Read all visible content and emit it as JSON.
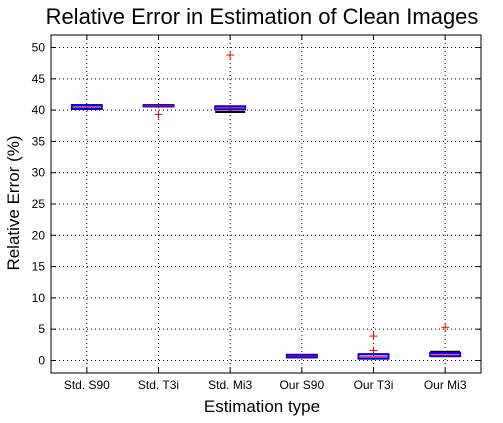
{
  "chart_data": {
    "type": "box",
    "title": "Relative Error in Estimation of Clean Images",
    "xlabel": "Estimation type",
    "ylabel": "Relative Error (%)",
    "ylim": [
      -2,
      52
    ],
    "yticks": [
      0,
      5,
      10,
      15,
      20,
      25,
      30,
      35,
      40,
      45,
      50
    ],
    "grid": true,
    "categories": [
      "Std. S90",
      "Std. T3i",
      "Std. Mi3",
      "Our S90",
      "Our T3i",
      "Our Mi3"
    ],
    "boxes": [
      {
        "category": "Std. S90",
        "q1": 40.2,
        "median": 40.5,
        "q3": 40.8,
        "whisker_low": 40.2,
        "whisker_high": 40.8,
        "outliers": []
      },
      {
        "category": "Std. T3i",
        "q1": 40.6,
        "median": 40.7,
        "q3": 40.8,
        "whisker_low": 40.6,
        "whisker_high": 40.8,
        "outliers": [
          39.3
        ]
      },
      {
        "category": "Std. Mi3",
        "q1": 40.1,
        "median": 40.3,
        "q3": 40.6,
        "whisker_low": 39.7,
        "whisker_high": 40.6,
        "outliers": [
          48.8
        ]
      },
      {
        "category": "Our S90",
        "q1": 0.5,
        "median": 0.7,
        "q3": 0.9,
        "whisker_low": 0.5,
        "whisker_high": 0.9,
        "outliers": []
      },
      {
        "category": "Our T3i",
        "q1": 0.3,
        "median": 0.6,
        "q3": 1.0,
        "whisker_low": 0.3,
        "whisker_high": 1.0,
        "outliers": [
          1.6,
          3.9
        ]
      },
      {
        "category": "Our Mi3",
        "q1": 0.7,
        "median": 0.9,
        "q3": 1.2,
        "whisker_low": 0.7,
        "whisker_high": 1.4,
        "outliers": [
          5.3
        ]
      }
    ],
    "colors": {
      "box": "#0000ff",
      "median": "#ff0000",
      "whisker": "#000000",
      "outlier": "#ff0000",
      "grid": "#000000",
      "axis": "#000000"
    }
  }
}
